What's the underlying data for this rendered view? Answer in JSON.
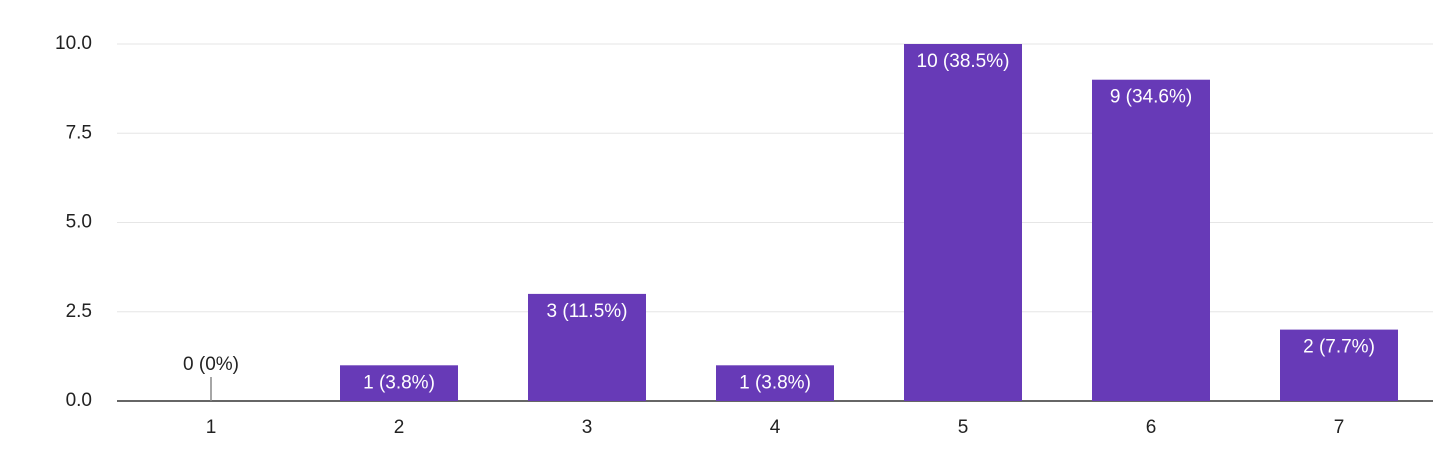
{
  "chart_data": {
    "type": "bar",
    "categories": [
      "1",
      "2",
      "3",
      "4",
      "5",
      "6",
      "7"
    ],
    "values": [
      0,
      1,
      3,
      1,
      10,
      9,
      2
    ],
    "value_labels": [
      "0 (0%)",
      "1 (3.8%)",
      "3 (11.5%)",
      "1 (3.8%)",
      "10 (38.5%)",
      "9 (34.6%)",
      "2 (7.7%)"
    ],
    "color": "#673ab7",
    "ylim": [
      0,
      10
    ],
    "yticks": [
      {
        "value": 0,
        "label": "0.0"
      },
      2.5,
      {
        "value": 5,
        "label": "5.0"
      },
      7.5,
      {
        "value": 10,
        "label": "10.0"
      }
    ],
    "grid": true
  }
}
